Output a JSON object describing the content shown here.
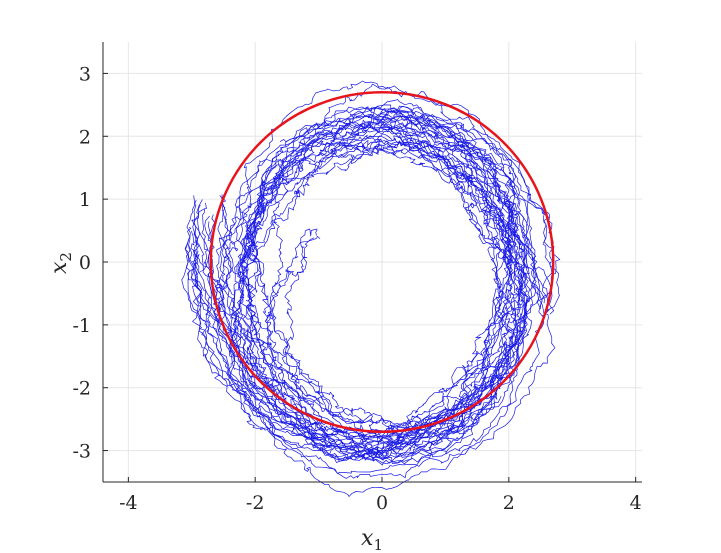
{
  "chart_data": {
    "type": "line",
    "title": "",
    "xlabel": "x",
    "xlabel_subscript": "1",
    "ylabel": "x",
    "ylabel_subscript": "2",
    "xlim": [
      -4.4,
      4.1
    ],
    "ylim": [
      -3.5,
      3.5
    ],
    "xticks": [
      -4,
      -2,
      0,
      2,
      4
    ],
    "yticks": [
      -3,
      -2,
      -1,
      0,
      1,
      2,
      3
    ],
    "xtick_labels": [
      "-4",
      "-2",
      "0",
      "2",
      "4"
    ],
    "ytick_labels": [
      "-3",
      "-2",
      "-1",
      "0",
      "1",
      "2",
      "3"
    ],
    "grid": true,
    "aspect": "equal",
    "series": [
      {
        "kind": "circle",
        "center": [
          0,
          0
        ],
        "radius": 2.7,
        "color": "#e8141c"
      },
      {
        "kind": "noisy-trajectories",
        "color": "#1a1ae6",
        "trajectory_count": 34,
        "start_points": [
          [
            -1.0,
            0.4
          ],
          [
            -3.0,
            0.55
          ],
          [
            -2.9,
            1.0
          ],
          [
            -2.8,
            0.9
          ],
          [
            -2.7,
            0.7
          ],
          [
            -2.5,
            1.1
          ],
          [
            -1.6,
            1.6
          ],
          [
            2.0,
            0.0
          ],
          [
            2.6,
            -0.8
          ],
          [
            2.5,
            -0.7
          ],
          [
            -3.0,
            0.3
          ],
          [
            -2.95,
            0.1
          ]
        ],
        "envelope": {
          "x_min": -3.05,
          "x_max": 2.65,
          "y_min": -3.1,
          "y_max": 2.45
        }
      }
    ]
  }
}
